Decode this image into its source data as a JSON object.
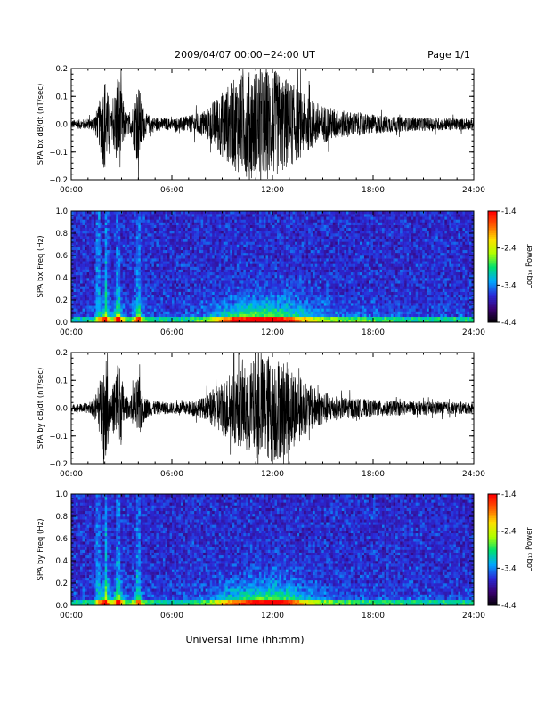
{
  "header": {
    "title": "2009/04/07  00:00−24:00 UT",
    "page": "Page 1/1"
  },
  "xaxis": {
    "label": "Universal Time (hh:mm)",
    "ticks": [
      "00:00",
      "06:00",
      "12:00",
      "18:00",
      "24:00"
    ],
    "range_hours": [
      0,
      24
    ]
  },
  "colorbar": {
    "label": "Log₁₀ Power",
    "ticks": [
      "-1.4",
      "-2.4",
      "-3.4",
      "-4.4"
    ],
    "range": [
      -4.4,
      -1.4
    ],
    "colors": [
      "#000000",
      "#3a0070",
      "#2a2ad8",
      "#00a8ff",
      "#00e070",
      "#b0ff00",
      "#ffe000",
      "#ff6000",
      "#ff0000"
    ]
  },
  "chart_data": [
    {
      "type": "line",
      "name": "bx-waveform",
      "ylabel": "SPA bx dB/dt (nT/sec)",
      "ylim": [
        -0.2,
        0.2
      ],
      "yticks": [
        "0.2",
        "0.1",
        "0.0",
        "−0.1",
        "−0.2"
      ],
      "activity_envelope_hours": [
        [
          0,
          0.015
        ],
        [
          1.2,
          0.02
        ],
        [
          1.6,
          0.06
        ],
        [
          2.0,
          0.18
        ],
        [
          2.4,
          0.04
        ],
        [
          2.8,
          0.2
        ],
        [
          3.2,
          0.05
        ],
        [
          3.5,
          0.03
        ],
        [
          4.0,
          0.15
        ],
        [
          4.4,
          0.04
        ],
        [
          5.0,
          0.025
        ],
        [
          6.0,
          0.02
        ],
        [
          7.0,
          0.03
        ],
        [
          8.0,
          0.05
        ],
        [
          9.0,
          0.12
        ],
        [
          10.0,
          0.18
        ],
        [
          11.0,
          0.2
        ],
        [
          12.0,
          0.2
        ],
        [
          13.0,
          0.16
        ],
        [
          14.0,
          0.1
        ],
        [
          15.0,
          0.07
        ],
        [
          16.0,
          0.05
        ],
        [
          18.0,
          0.035
        ],
        [
          20.0,
          0.025
        ],
        [
          24.0,
          0.02
        ]
      ]
    },
    {
      "type": "heatmap",
      "name": "bx-spectrogram",
      "ylabel": "SPA bx Freq (Hz)",
      "ylim": [
        0,
        1.0
      ],
      "yticks": [
        "1.0",
        "0.8",
        "0.6",
        "0.4",
        "0.2",
        "0.0"
      ],
      "value_range": [
        -4.4,
        -1.4
      ]
    },
    {
      "type": "line",
      "name": "by-waveform",
      "ylabel": "SPA by dB/dt (nT/sec)",
      "ylim": [
        -0.2,
        0.2
      ],
      "yticks": [
        "0.2",
        "0.1",
        "0.0",
        "−0.1",
        "−0.2"
      ],
      "activity_envelope_hours": [
        [
          0,
          0.012
        ],
        [
          1.2,
          0.02
        ],
        [
          1.6,
          0.07
        ],
        [
          2.0,
          0.2
        ],
        [
          2.4,
          0.05
        ],
        [
          2.8,
          0.2
        ],
        [
          3.2,
          0.05
        ],
        [
          3.5,
          0.03
        ],
        [
          4.0,
          0.12
        ],
        [
          4.4,
          0.04
        ],
        [
          5.0,
          0.025
        ],
        [
          6.0,
          0.02
        ],
        [
          7.0,
          0.025
        ],
        [
          8.0,
          0.04
        ],
        [
          9.0,
          0.1
        ],
        [
          10.0,
          0.14
        ],
        [
          11.0,
          0.18
        ],
        [
          12.0,
          0.2
        ],
        [
          13.0,
          0.16
        ],
        [
          14.0,
          0.09
        ],
        [
          15.0,
          0.06
        ],
        [
          16.0,
          0.04
        ],
        [
          18.0,
          0.03
        ],
        [
          20.0,
          0.025
        ],
        [
          24.0,
          0.02
        ]
      ]
    },
    {
      "type": "heatmap",
      "name": "by-spectrogram",
      "ylabel": "SPA by Freq (Hz)",
      "ylim": [
        0,
        1.0
      ],
      "yticks": [
        "1.0",
        "0.8",
        "0.6",
        "0.4",
        "0.2",
        "0.0"
      ],
      "value_range": [
        -4.4,
        -1.4
      ]
    }
  ]
}
